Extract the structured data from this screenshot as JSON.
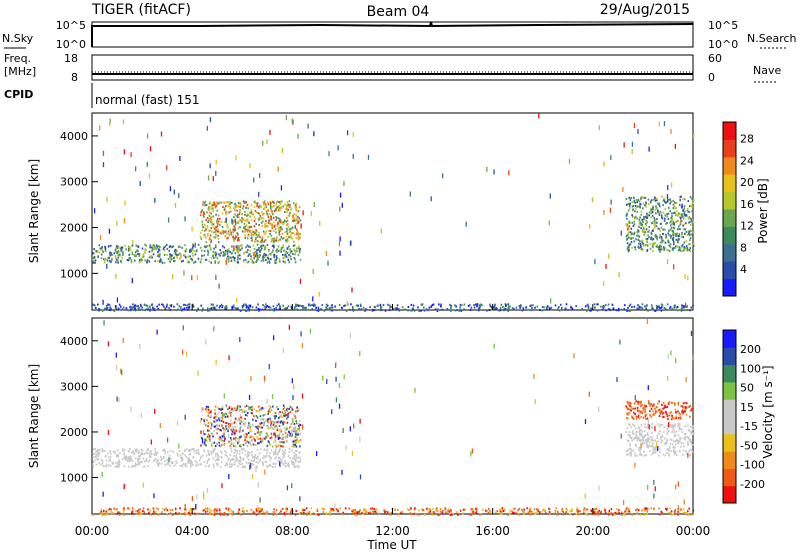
{
  "header": {
    "radar": "TIGER (fitACF)",
    "beam": "Beam 04",
    "date": "29/Aug/2015"
  },
  "aux_panels": {
    "nsky": {
      "label": "N.Sky",
      "ticks": [
        "10^5",
        "10^0"
      ],
      "right_ticks": [
        "10^5",
        "10^0"
      ],
      "right_label": "N.Search"
    },
    "freq": {
      "label_line1": "Freq.",
      "label_line2": "[MHz]",
      "ticks": [
        "18",
        "8"
      ],
      "right_ticks": [
        "60",
        "0"
      ],
      "right_label": "Nave"
    },
    "cpid": {
      "label": "CPID",
      "value": "normal (fast) 151"
    }
  },
  "time_axis": {
    "label": "Time UT",
    "ticks": [
      "00:00",
      "04:00",
      "08:00",
      "12:00",
      "16:00",
      "20:00",
      "00:00"
    ]
  },
  "range_axis": {
    "label": "Slant Range [km]",
    "ticks": [
      "1000",
      "2000",
      "3000",
      "4000"
    ]
  },
  "colors": {
    "power": [
      "#1a1aff",
      "#2a4ea8",
      "#3b6f8f",
      "#3c8a5c",
      "#6aa84f",
      "#b5c72a",
      "#e8c21a",
      "#f08a1a",
      "#e8401a",
      "#ee1010"
    ],
    "velocity": [
      "#ee1010",
      "#f05a14",
      "#f08a1a",
      "#e8c21a",
      "#c9c9c9",
      "#c9c9c9",
      "#7dc243",
      "#3c8a5c",
      "#2a4ea8",
      "#1a1aff"
    ]
  },
  "chart_data": [
    {
      "type": "heatmap",
      "title": "Power",
      "xlabel": "Time UT",
      "ylabel": "Slant Range [km]",
      "colorbar_label": "Power [dB]",
      "colorbar_ticks": [
        "4",
        "8",
        "12",
        "16",
        "20",
        "24",
        "28"
      ],
      "colorbar_range": [
        0,
        30
      ],
      "x_range_hours": [
        0,
        24
      ],
      "y_range_km": [
        200,
        4500
      ],
      "echo_regions": [
        {
          "t_start": 0.0,
          "t_end": 8.3,
          "r_start": 1250,
          "r_end": 1650,
          "level": "medium"
        },
        {
          "t_start": 4.3,
          "t_end": 8.3,
          "r_start": 1700,
          "r_end": 2600,
          "level": "high"
        },
        {
          "t_start": 21.3,
          "t_end": 24.0,
          "r_start": 1500,
          "r_end": 2700,
          "level": "medium"
        },
        {
          "t_start": 0.0,
          "t_end": 24.0,
          "r_start": 200,
          "r_end": 350,
          "level": "low"
        }
      ]
    },
    {
      "type": "heatmap",
      "title": "Velocity",
      "xlabel": "Time UT",
      "ylabel": "Slant Range [km]",
      "colorbar_label": "Velocity [m s⁻¹]",
      "colorbar_ticks": [
        "-200",
        "-100",
        "-50",
        "-15",
        "15",
        "50",
        "100",
        "200"
      ],
      "colorbar_range": [
        -250,
        250
      ],
      "x_range_hours": [
        0,
        24
      ],
      "y_range_km": [
        200,
        4500
      ],
      "echo_regions": [
        {
          "t_start": 0.0,
          "t_end": 8.3,
          "r_start": 1250,
          "r_end": 1650,
          "level": "near-zero"
        },
        {
          "t_start": 4.3,
          "t_end": 8.3,
          "r_start": 1700,
          "r_end": 2600,
          "level": "mixed"
        },
        {
          "t_start": 21.3,
          "t_end": 24.0,
          "r_start": 2300,
          "r_end": 2700,
          "level": "negative"
        },
        {
          "t_start": 21.3,
          "t_end": 24.0,
          "r_start": 1500,
          "r_end": 2200,
          "level": "near-zero"
        },
        {
          "t_start": 0.0,
          "t_end": 24.0,
          "r_start": 200,
          "r_end": 350,
          "level": "low"
        }
      ]
    }
  ]
}
